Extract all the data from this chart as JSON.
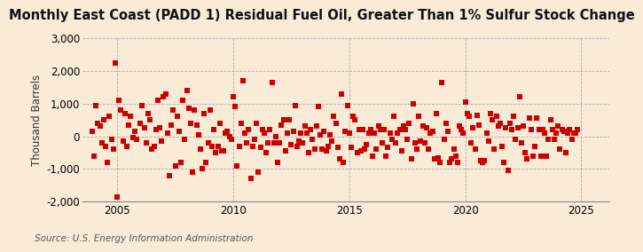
{
  "title": "Monthly East Coast (PADD 1) Residual Fuel Oil, Greater Than 1% Sulfur Stock Change",
  "ylabel": "Thousand Barrels",
  "source": "Source: U.S. Energy Information Administration",
  "background_color": "#faebd7",
  "plot_bg_color": "#faebd7",
  "marker_color": "#cc0000",
  "marker_size": 16,
  "ylim": [
    -2000,
    3000
  ],
  "yticks": [
    -2000,
    -1000,
    0,
    1000,
    2000,
    3000
  ],
  "xlim_start": 2003.5,
  "xlim_end": 2026.2,
  "xticks": [
    2005,
    2010,
    2015,
    2020,
    2025
  ],
  "title_fontsize": 10.5,
  "ylabel_fontsize": 8.5,
  "source_fontsize": 7.5,
  "tick_fontsize": 8.5,
  "data_points": [
    [
      2003.917,
      150
    ],
    [
      2004.0,
      -600
    ],
    [
      2004.083,
      950
    ],
    [
      2004.167,
      400
    ],
    [
      2004.25,
      300
    ],
    [
      2004.333,
      -200
    ],
    [
      2004.417,
      500
    ],
    [
      2004.5,
      -300
    ],
    [
      2004.583,
      -800
    ],
    [
      2004.667,
      600
    ],
    [
      2004.75,
      -100
    ],
    [
      2004.833,
      -400
    ],
    [
      2004.917,
      2250
    ],
    [
      2005.0,
      -1850
    ],
    [
      2005.083,
      1100
    ],
    [
      2005.167,
      800
    ],
    [
      2005.25,
      -150
    ],
    [
      2005.333,
      700
    ],
    [
      2005.417,
      -300
    ],
    [
      2005.5,
      350
    ],
    [
      2005.583,
      600
    ],
    [
      2005.667,
      -50
    ],
    [
      2005.75,
      150
    ],
    [
      2005.833,
      -100
    ],
    [
      2006.0,
      400
    ],
    [
      2006.083,
      950
    ],
    [
      2006.167,
      250
    ],
    [
      2006.25,
      -200
    ],
    [
      2006.333,
      700
    ],
    [
      2006.417,
      500
    ],
    [
      2006.5,
      -400
    ],
    [
      2006.583,
      -300
    ],
    [
      2006.667,
      200
    ],
    [
      2006.75,
      1100
    ],
    [
      2006.833,
      250
    ],
    [
      2006.917,
      -150
    ],
    [
      2007.0,
      1200
    ],
    [
      2007.083,
      1300
    ],
    [
      2007.167,
      100
    ],
    [
      2007.25,
      -1200
    ],
    [
      2007.333,
      350
    ],
    [
      2007.417,
      800
    ],
    [
      2007.5,
      -900
    ],
    [
      2007.583,
      600
    ],
    [
      2007.667,
      150
    ],
    [
      2007.75,
      -800
    ],
    [
      2007.833,
      1100
    ],
    [
      2007.917,
      -100
    ],
    [
      2008.0,
      1400
    ],
    [
      2008.083,
      850
    ],
    [
      2008.167,
      400
    ],
    [
      2008.25,
      -1100
    ],
    [
      2008.333,
      800
    ],
    [
      2008.417,
      350
    ],
    [
      2008.5,
      50
    ],
    [
      2008.583,
      -400
    ],
    [
      2008.667,
      -1000
    ],
    [
      2008.75,
      700
    ],
    [
      2008.833,
      -800
    ],
    [
      2008.917,
      -200
    ],
    [
      2009.0,
      800
    ],
    [
      2009.083,
      -300
    ],
    [
      2009.167,
      200
    ],
    [
      2009.25,
      -500
    ],
    [
      2009.333,
      -300
    ],
    [
      2009.417,
      400
    ],
    [
      2009.5,
      -450
    ],
    [
      2009.583,
      -450
    ],
    [
      2009.667,
      100
    ],
    [
      2009.75,
      150
    ],
    [
      2009.833,
      0
    ],
    [
      2009.917,
      -100
    ],
    [
      2010.0,
      1200
    ],
    [
      2010.083,
      900
    ],
    [
      2010.167,
      -900
    ],
    [
      2010.25,
      -300
    ],
    [
      2010.333,
      400
    ],
    [
      2010.417,
      1700
    ],
    [
      2010.5,
      100
    ],
    [
      2010.583,
      -200
    ],
    [
      2010.667,
      200
    ],
    [
      2010.75,
      -1300
    ],
    [
      2010.833,
      -300
    ],
    [
      2010.917,
      -100
    ],
    [
      2011.0,
      400
    ],
    [
      2011.083,
      -1100
    ],
    [
      2011.167,
      -350
    ],
    [
      2011.25,
      200
    ],
    [
      2011.333,
      100
    ],
    [
      2011.417,
      -500
    ],
    [
      2011.5,
      -200
    ],
    [
      2011.583,
      200
    ],
    [
      2011.667,
      1650
    ],
    [
      2011.75,
      -200
    ],
    [
      2011.833,
      0
    ],
    [
      2011.917,
      -800
    ],
    [
      2012.0,
      -200
    ],
    [
      2012.083,
      350
    ],
    [
      2012.167,
      500
    ],
    [
      2012.25,
      -450
    ],
    [
      2012.333,
      100
    ],
    [
      2012.417,
      500
    ],
    [
      2012.5,
      -250
    ],
    [
      2012.583,
      150
    ],
    [
      2012.667,
      950
    ],
    [
      2012.75,
      -300
    ],
    [
      2012.833,
      -150
    ],
    [
      2012.917,
      100
    ],
    [
      2013.0,
      -200
    ],
    [
      2013.083,
      300
    ],
    [
      2013.167,
      100
    ],
    [
      2013.25,
      -500
    ],
    [
      2013.333,
      200
    ],
    [
      2013.417,
      -100
    ],
    [
      2013.5,
      -400
    ],
    [
      2013.583,
      300
    ],
    [
      2013.667,
      900
    ],
    [
      2013.75,
      50
    ],
    [
      2013.833,
      -400
    ],
    [
      2013.917,
      150
    ],
    [
      2014.0,
      -450
    ],
    [
      2014.083,
      -300
    ],
    [
      2014.167,
      50
    ],
    [
      2014.25,
      -150
    ],
    [
      2014.333,
      600
    ],
    [
      2014.417,
      400
    ],
    [
      2014.5,
      -350
    ],
    [
      2014.583,
      -700
    ],
    [
      2014.667,
      1300
    ],
    [
      2014.75,
      -800
    ],
    [
      2014.833,
      150
    ],
    [
      2014.917,
      950
    ],
    [
      2015.0,
      100
    ],
    [
      2015.083,
      -350
    ],
    [
      2015.167,
      600
    ],
    [
      2015.25,
      500
    ],
    [
      2015.333,
      -500
    ],
    [
      2015.417,
      200
    ],
    [
      2015.5,
      -450
    ],
    [
      2015.583,
      200
    ],
    [
      2015.667,
      -400
    ],
    [
      2015.75,
      -250
    ],
    [
      2015.833,
      100
    ],
    [
      2015.917,
      200
    ],
    [
      2016.0,
      -600
    ],
    [
      2016.083,
      100
    ],
    [
      2016.167,
      -400
    ],
    [
      2016.25,
      300
    ],
    [
      2016.333,
      200
    ],
    [
      2016.417,
      -200
    ],
    [
      2016.5,
      200
    ],
    [
      2016.583,
      -600
    ],
    [
      2016.667,
      -350
    ],
    [
      2016.75,
      100
    ],
    [
      2016.833,
      -100
    ],
    [
      2016.917,
      600
    ],
    [
      2017.0,
      -200
    ],
    [
      2017.083,
      100
    ],
    [
      2017.167,
      200
    ],
    [
      2017.25,
      -450
    ],
    [
      2017.333,
      300
    ],
    [
      2017.417,
      200
    ],
    [
      2017.5,
      -100
    ],
    [
      2017.583,
      400
    ],
    [
      2017.667,
      -700
    ],
    [
      2017.75,
      1000
    ],
    [
      2017.833,
      -200
    ],
    [
      2017.917,
      -400
    ],
    [
      2018.0,
      600
    ],
    [
      2018.083,
      -150
    ],
    [
      2018.167,
      300
    ],
    [
      2018.25,
      -200
    ],
    [
      2018.333,
      250
    ],
    [
      2018.417,
      -400
    ],
    [
      2018.5,
      100
    ],
    [
      2018.583,
      150
    ],
    [
      2018.667,
      -700
    ],
    [
      2018.75,
      700
    ],
    [
      2018.833,
      -650
    ],
    [
      2018.917,
      -800
    ],
    [
      2019.0,
      1650
    ],
    [
      2019.083,
      -100
    ],
    [
      2019.167,
      400
    ],
    [
      2019.25,
      150
    ],
    [
      2019.333,
      -800
    ],
    [
      2019.417,
      -700
    ],
    [
      2019.5,
      -400
    ],
    [
      2019.583,
      -600
    ],
    [
      2019.667,
      -800
    ],
    [
      2019.75,
      300
    ],
    [
      2019.833,
      200
    ],
    [
      2019.917,
      100
    ],
    [
      2020.0,
      1050
    ],
    [
      2020.083,
      700
    ],
    [
      2020.167,
      600
    ],
    [
      2020.25,
      -200
    ],
    [
      2020.333,
      250
    ],
    [
      2020.417,
      -400
    ],
    [
      2020.5,
      650
    ],
    [
      2020.583,
      350
    ],
    [
      2020.667,
      -750
    ],
    [
      2020.75,
      -800
    ],
    [
      2020.833,
      -750
    ],
    [
      2020.917,
      100
    ],
    [
      2021.0,
      -150
    ],
    [
      2021.083,
      700
    ],
    [
      2021.167,
      500
    ],
    [
      2021.25,
      -400
    ],
    [
      2021.333,
      600
    ],
    [
      2021.417,
      300
    ],
    [
      2021.5,
      400
    ],
    [
      2021.583,
      -300
    ],
    [
      2021.667,
      -800
    ],
    [
      2021.75,
      250
    ],
    [
      2021.833,
      -1050
    ],
    [
      2021.917,
      400
    ],
    [
      2022.0,
      200
    ],
    [
      2022.083,
      600
    ],
    [
      2022.167,
      -100
    ],
    [
      2022.25,
      250
    ],
    [
      2022.333,
      1200
    ],
    [
      2022.417,
      -200
    ],
    [
      2022.5,
      300
    ],
    [
      2022.583,
      -500
    ],
    [
      2022.667,
      -700
    ],
    [
      2022.75,
      550
    ],
    [
      2022.833,
      200
    ],
    [
      2022.917,
      -600
    ],
    [
      2023.0,
      -300
    ],
    [
      2023.083,
      550
    ],
    [
      2023.167,
      200
    ],
    [
      2023.25,
      -600
    ],
    [
      2023.333,
      200
    ],
    [
      2023.417,
      100
    ],
    [
      2023.5,
      -600
    ],
    [
      2023.583,
      -100
    ],
    [
      2023.667,
      500
    ],
    [
      2023.75,
      200
    ],
    [
      2023.833,
      -100
    ],
    [
      2023.917,
      100
    ],
    [
      2024.0,
      300
    ],
    [
      2024.083,
      -400
    ],
    [
      2024.167,
      200
    ],
    [
      2024.25,
      150
    ],
    [
      2024.333,
      -500
    ],
    [
      2024.417,
      100
    ],
    [
      2024.5,
      200
    ],
    [
      2024.583,
      -100
    ],
    [
      2024.667,
      100
    ],
    [
      2024.75,
      100
    ],
    [
      2024.833,
      200
    ]
  ]
}
